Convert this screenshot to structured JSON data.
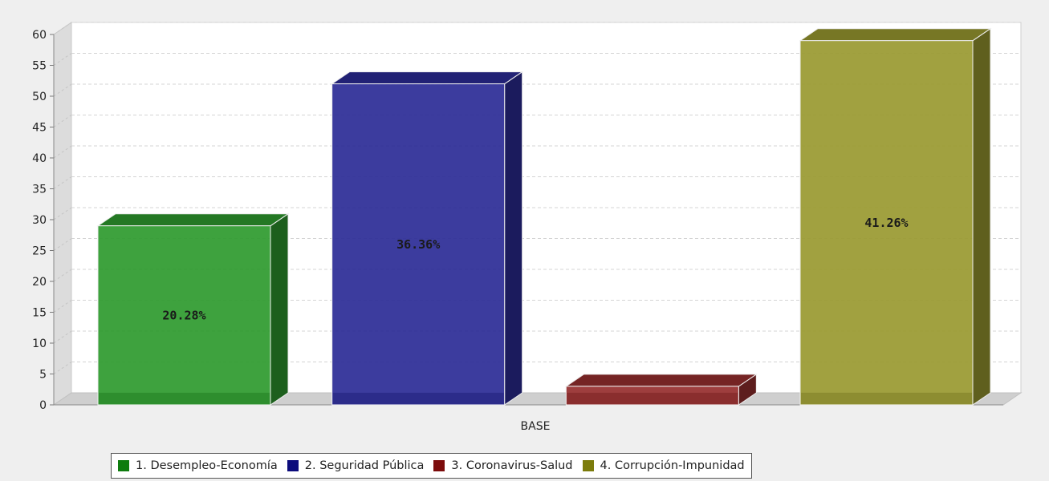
{
  "chart_data": {
    "type": "bar",
    "title": "",
    "xlabel": "",
    "ylabel": "",
    "categories": [
      "BASE"
    ],
    "ylim": [
      0,
      60
    ],
    "y_ticks": [
      0,
      5,
      10,
      15,
      20,
      25,
      30,
      35,
      40,
      45,
      50,
      55,
      60
    ],
    "grid": true,
    "legend_position": "bottom",
    "three_d": true,
    "series": [
      {
        "name": "1. Desempleo-Economía",
        "values": [
          29
        ],
        "label": "20.28%",
        "color": "#2e9a2e"
      },
      {
        "name": "2. Seguridad Pública",
        "values": [
          52
        ],
        "label": "36.36%",
        "color": "#2b2b96"
      },
      {
        "name": "3. Coronavirus-Salud",
        "values": [
          3
        ],
        "label": "",
        "color": "#962e2e"
      },
      {
        "name": "4. Corrupción-Impunidad",
        "values": [
          59
        ],
        "label": "41.26%",
        "color": "#999930"
      }
    ],
    "legend_colors": [
      "#0e7c0e",
      "#0c0c7c",
      "#7c0c0c",
      "#7c7c0c"
    ]
  }
}
